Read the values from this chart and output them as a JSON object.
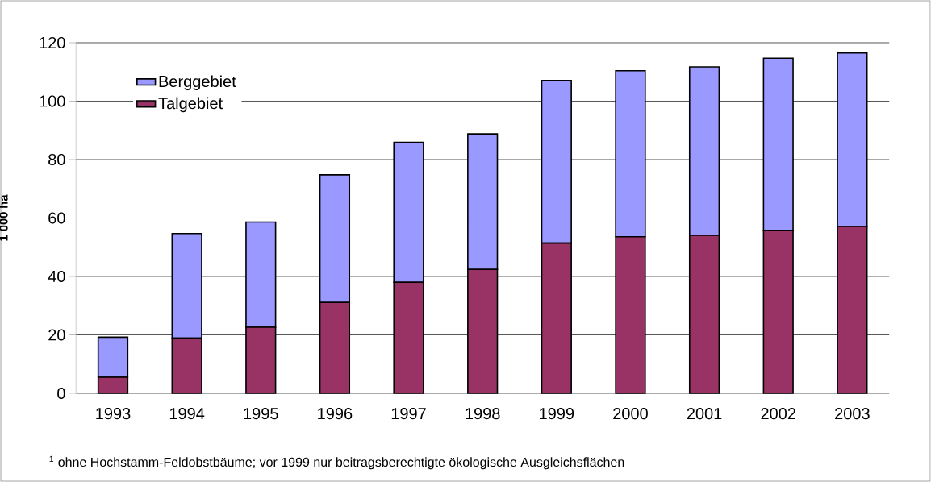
{
  "chart_data": {
    "type": "bar",
    "stacked": true,
    "ylabel": "1 000 ha",
    "categories": [
      "1993",
      "1994",
      "1995",
      "1996",
      "1997",
      "1998",
      "1999",
      "2000",
      "2001",
      "2002",
      "2003"
    ],
    "series": [
      {
        "name": "Talgebiet",
        "color": "#993366",
        "values": [
          5.5,
          18.9,
          22.6,
          31.1,
          38.0,
          42.4,
          51.4,
          53.6,
          54.1,
          55.8,
          57.1
        ]
      },
      {
        "name": "Berggebiet",
        "color": "#9999ff",
        "values": [
          13.7,
          35.8,
          36.0,
          43.7,
          47.9,
          46.4,
          55.7,
          56.8,
          57.6,
          58.9,
          59.4
        ]
      }
    ],
    "ylim": [
      0,
      120
    ],
    "yticks": [
      0,
      20,
      40,
      60,
      80,
      100,
      120
    ],
    "grid": "y",
    "legend": "top left",
    "annotations": [
      "$^{1}$ ohne Hochstamm-Feldobstbäume; vor 1999 nur beitragsberechtigte ökologische Ausgleichsflächen"
    ]
  }
}
